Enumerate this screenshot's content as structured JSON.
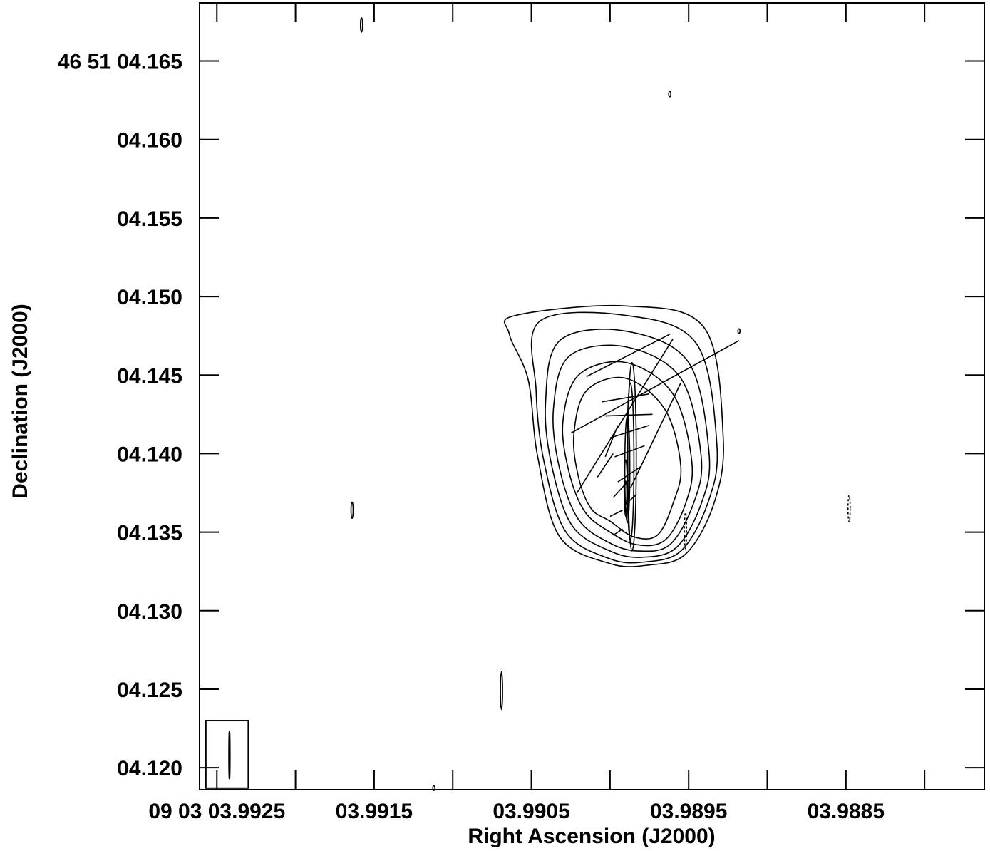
{
  "chart_data": {
    "type": "contour",
    "title": "",
    "xlabel": "Right Ascension (J2000)",
    "ylabel": "Declination (J2000)",
    "x_tick_labels": [
      "09 03 03.9925",
      "03.9915",
      "03.9905",
      "03.9895",
      "03.9885"
    ],
    "x_tick_values_s": [
      3.9925,
      3.9915,
      3.9905,
      3.9895,
      3.9885
    ],
    "y_tick_labels": [
      "46 51 04.165",
      "04.160",
      "04.155",
      "04.150",
      "04.145",
      "04.140",
      "04.135",
      "04.130",
      "04.125",
      "04.120"
    ],
    "y_tick_values_s": [
      4.165,
      4.16,
      4.155,
      4.15,
      4.145,
      4.14,
      4.135,
      4.13,
      4.125,
      4.12
    ],
    "x_range_s": [
      3.99261,
      3.98762
    ],
    "y_range_s": [
      4.1186,
      4.1687
    ],
    "peak": {
      "ra_s": 3.9899,
      "dec_s": 4.1375
    },
    "contour_levels_count": 11,
    "core_contours": [
      {
        "ra_s": 3.9899,
        "dec_s": 4.1375,
        "semi_axis_ra_s": 4.5e-06,
        "semi_axis_dec_s": 0.00075
      },
      {
        "ra_s": 3.9899,
        "dec_s": 4.1378,
        "semi_axis_ra_s": 1e-05,
        "semi_axis_dec_s": 0.0018
      },
      {
        "ra_s": 3.98989,
        "dec_s": 4.139,
        "semi_axis_ra_s": 1.6e-05,
        "semi_axis_dec_s": 0.0034
      },
      {
        "ra_s": 3.98987,
        "dec_s": 4.1395,
        "semi_axis_ra_s": 2.2e-05,
        "semi_axis_dec_s": 0.005
      },
      {
        "ra_s": 3.98986,
        "dec_s": 4.1398,
        "semi_axis_ra_s": 2.7e-05,
        "semi_axis_dec_s": 0.006
      }
    ],
    "outer_contours": [
      [
        [
          3.99,
          4.1357
        ],
        [
          3.98985,
          4.1347
        ],
        [
          3.9897,
          4.1348
        ],
        [
          3.9896,
          4.1368
        ],
        [
          3.98955,
          4.1392
        ],
        [
          3.98965,
          4.1428
        ],
        [
          3.9899,
          4.1448
        ],
        [
          3.99015,
          4.144
        ],
        [
          3.99023,
          4.1412
        ],
        [
          3.9902,
          4.1385
        ],
        [
          3.99012,
          4.1365
        ],
        [
          3.99,
          4.1357
        ]
      ],
      [
        [
          3.99,
          4.135
        ],
        [
          3.98983,
          4.1342
        ],
        [
          3.98965,
          4.1345
        ],
        [
          3.98952,
          4.1368
        ],
        [
          3.98948,
          4.1395
        ],
        [
          3.9896,
          4.1438
        ],
        [
          3.9899,
          4.1458
        ],
        [
          3.9902,
          4.145
        ],
        [
          3.9903,
          4.142
        ],
        [
          3.99026,
          4.1388
        ],
        [
          3.99016,
          4.1363
        ],
        [
          3.99,
          4.135
        ]
      ],
      [
        [
          3.99,
          4.1343
        ],
        [
          3.98982,
          4.1338
        ],
        [
          3.98962,
          4.1342
        ],
        [
          3.98947,
          4.1368
        ],
        [
          3.98942,
          4.1398
        ],
        [
          3.98955,
          4.1448
        ],
        [
          3.9899,
          4.1468
        ],
        [
          3.99026,
          4.1462
        ],
        [
          3.99036,
          4.1428
        ],
        [
          3.99032,
          4.139
        ],
        [
          3.9902,
          4.1358
        ],
        [
          3.99,
          4.1343
        ]
      ],
      [
        [
          3.99,
          4.1338
        ],
        [
          3.9898,
          4.1334
        ],
        [
          3.98958,
          4.134
        ],
        [
          3.98942,
          4.1368
        ],
        [
          3.98937,
          4.14
        ],
        [
          3.9895,
          4.1458
        ],
        [
          3.9899,
          4.1478
        ],
        [
          3.99032,
          4.1472
        ],
        [
          3.99041,
          4.1432
        ],
        [
          3.99037,
          4.1392
        ],
        [
          3.99024,
          4.1354
        ],
        [
          3.99,
          4.1338
        ]
      ],
      [
        [
          3.99,
          4.1333
        ],
        [
          3.98978,
          4.1331
        ],
        [
          3.98955,
          4.1338
        ],
        [
          3.98938,
          4.1368
        ],
        [
          3.98932,
          4.1405
        ],
        [
          3.98945,
          4.147
        ],
        [
          3.9899,
          4.1488
        ],
        [
          3.99045,
          4.1484
        ],
        [
          3.99047,
          4.144
        ],
        [
          3.99042,
          4.1395
        ],
        [
          3.99028,
          4.135
        ],
        [
          3.99,
          4.1333
        ]
      ],
      [
        [
          3.99,
          4.133
        ],
        [
          3.98976,
          4.1329
        ],
        [
          3.98952,
          4.1336
        ],
        [
          3.98934,
          4.1368
        ],
        [
          3.98928,
          4.141
        ],
        [
          3.9894,
          4.148
        ],
        [
          3.9899,
          4.1494
        ],
        [
          3.9906,
          4.1488
        ],
        [
          3.99064,
          4.1476
        ],
        [
          3.99052,
          4.1447
        ],
        [
          3.99046,
          4.1398
        ],
        [
          3.99032,
          4.1347
        ],
        [
          3.99,
          4.133
        ]
      ]
    ],
    "isolated_positive_contours": [
      {
        "ra_s": 3.99158,
        "dec_s": 4.1673,
        "semi_axis_ra_s": 1.2e-06,
        "semi_axis_dec_s": 0.00045
      },
      {
        "ra_s": 3.98962,
        "dec_s": 4.1629,
        "semi_axis_ra_s": 4e-07,
        "semi_axis_dec_s": 0.00018
      },
      {
        "ra_s": 3.99164,
        "dec_s": 4.1364,
        "semi_axis_ra_s": 1.2e-06,
        "semi_axis_dec_s": 0.00052
      },
      {
        "ra_s": 3.99069,
        "dec_s": 4.1249,
        "semi_axis_ra_s": 3.2e-06,
        "semi_axis_dec_s": 0.0012
      },
      {
        "ra_s": 3.99112,
        "dec_s": 4.1187,
        "semi_axis_ra_s": 6e-07,
        "semi_axis_dec_s": 0.00015
      },
      {
        "ra_s": 3.98918,
        "dec_s": 4.1478,
        "semi_axis_ra_s": 4e-07,
        "semi_axis_dec_s": 0.00015
      }
    ],
    "negative_contours": [
      {
        "ra_s": 3.98952,
        "dec_s": 4.1351,
        "semi_axis_ra_s": 2.2e-06,
        "semi_axis_dec_s": 0.00115
      },
      {
        "ra_s": 3.98848,
        "dec_s": 4.1365,
        "semi_axis_ra_s": 2e-06,
        "semi_axis_dec_s": 0.00085
      }
    ],
    "polarization_vectors": [
      {
        "ra1_s": 3.99015,
        "dec1_s": 4.1449,
        "ra2_s": 3.98962,
        "dec2_s": 4.1476
      },
      {
        "ra1_s": 3.99025,
        "dec1_s": 4.1413,
        "ra2_s": 3.98918,
        "dec2_s": 4.1472
      },
      {
        "ra1_s": 3.99021,
        "dec1_s": 4.1375,
        "ra2_s": 3.9896,
        "dec2_s": 4.1473
      },
      {
        "ra1_s": 3.98987,
        "dec1_s": 4.1378,
        "ra2_s": 3.98955,
        "dec2_s": 4.1445
      },
      {
        "ra1_s": 3.99005,
        "dec1_s": 4.1433,
        "ra2_s": 3.98975,
        "dec2_s": 4.1438
      },
      {
        "ra1_s": 3.99003,
        "dec1_s": 4.1424,
        "ra2_s": 3.98973,
        "dec2_s": 4.1425
      },
      {
        "ra1_s": 3.99,
        "dec1_s": 4.141,
        "ra2_s": 3.98975,
        "dec2_s": 4.1418
      },
      {
        "ra1_s": 3.98997,
        "dec1_s": 4.1398,
        "ra2_s": 3.98978,
        "dec2_s": 4.1405
      },
      {
        "ra1_s": 3.98995,
        "dec1_s": 4.1382,
        "ra2_s": 3.9898,
        "dec2_s": 4.1392
      },
      {
        "ra1_s": 3.99003,
        "dec1_s": 4.1398,
        "ra2_s": 3.98995,
        "dec2_s": 4.1418
      },
      {
        "ra1_s": 3.99008,
        "dec1_s": 4.1385,
        "ra2_s": 3.98998,
        "dec2_s": 4.14
      },
      {
        "ra1_s": 3.98998,
        "dec1_s": 4.1372,
        "ra2_s": 3.98988,
        "dec2_s": 4.1383
      },
      {
        "ra1_s": 3.9899,
        "dec1_s": 4.1368,
        "ra2_s": 3.98983,
        "dec2_s": 4.1374
      },
      {
        "ra1_s": 3.99,
        "dec1_s": 4.136,
        "ra2_s": 3.98992,
        "dec2_s": 4.1364
      },
      {
        "ra1_s": 3.98998,
        "dec1_s": 4.1348,
        "ra2_s": 3.98992,
        "dec2_s": 4.1352
      }
    ],
    "beam": {
      "ra_s": 3.99242,
      "dec_s": 4.1208,
      "semi_axis_ra_s": 3.1e-06,
      "semi_axis_dec_s": 0.0015
    },
    "beam_box": {
      "ra1_s": 3.99257,
      "dec1_s": 4.1187,
      "ra2_s": 3.9923,
      "dec2_s": 4.123
    },
    "grid": false,
    "legend": "none"
  }
}
